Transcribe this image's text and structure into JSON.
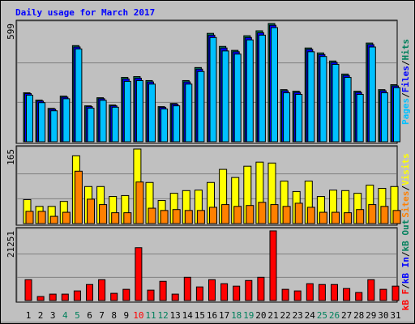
{
  "chart_data": [
    {
      "type": "bar",
      "title": "Daily usage for March 2017",
      "ylim": [
        0,
        599
      ],
      "yticks": [
        599
      ],
      "grid_divisions": 3,
      "legend_separator": "/",
      "series": [
        {
          "name": "Hits",
          "color": "#00805c",
          "values": [
            248,
            211,
            169,
            231,
            487,
            182,
            223,
            186,
            326,
            330,
            310,
            178,
            194,
            310,
            376,
            549,
            483,
            463,
            537,
            562,
            599,
            264,
            256,
            475,
            450,
            409,
            343,
            256,
            500,
            264,
            289
          ]
        },
        {
          "name": "Files",
          "color": "#0000ff",
          "values": [
            244,
            206,
            165,
            226,
            480,
            178,
            218,
            182,
            318,
            322,
            303,
            174,
            190,
            303,
            368,
            540,
            475,
            456,
            528,
            552,
            590,
            258,
            250,
            468,
            442,
            402,
            336,
            250,
            492,
            258,
            283
          ]
        },
        {
          "name": "Pages",
          "color": "#00c0ff",
          "values": [
            236,
            198,
            157,
            218,
            470,
            170,
            210,
            175,
            306,
            310,
            292,
            166,
            182,
            292,
            356,
            528,
            460,
            444,
            516,
            540,
            578,
            248,
            240,
            456,
            432,
            392,
            326,
            240,
            480,
            248,
            274
          ]
        }
      ]
    },
    {
      "type": "bar",
      "ylim": [
        0,
        165
      ],
      "yticks": [
        165
      ],
      "grid_divisions": 3,
      "legend_separator": "/",
      "series": [
        {
          "name": "Visits",
          "color": "#ffff00",
          "values": [
            53,
            38,
            38,
            49,
            150,
            82,
            82,
            60,
            62,
            165,
            91,
            51,
            67,
            73,
            74,
            91,
            120,
            102,
            127,
            136,
            134,
            94,
            71,
            94,
            60,
            74,
            73,
            67,
            85,
            78,
            82
          ]
        },
        {
          "name": "Sites",
          "color": "#ff8000",
          "values": [
            27,
            27,
            16,
            25,
            116,
            54,
            42,
            24,
            24,
            92,
            34,
            29,
            31,
            29,
            29,
            36,
            42,
            38,
            40,
            47,
            42,
            38,
            45,
            36,
            25,
            25,
            24,
            31,
            42,
            38,
            29
          ]
        }
      ]
    },
    {
      "type": "bar",
      "ylim": [
        0,
        21251
      ],
      "yticks": [
        21251
      ],
      "grid_divisions": 3,
      "legend_separator": "/",
      "series": [
        {
          "name": "kB F",
          "color": "#ff0000",
          "values": [
            6351,
            1221,
            1954,
            1954,
            2931,
            4885,
            6351,
            2198,
            3420,
            16122,
            3175,
            5862,
            1954,
            7084,
            4152,
            6351,
            5130,
            4396,
            6107,
            7084,
            21251,
            3420,
            2931,
            5130,
            4885,
            4885,
            3664,
            2443,
            6351,
            3420,
            4396
          ]
        }
      ],
      "legend_extra": [
        {
          "name": "kB In",
          "color": "#0000ff"
        },
        {
          "name": "kB Out",
          "color": "#00805c"
        }
      ],
      "categories": [
        "1",
        "2",
        "3",
        "4",
        "5",
        "6",
        "7",
        "8",
        "9",
        "10",
        "11",
        "12",
        "13",
        "14",
        "15",
        "16",
        "17",
        "18",
        "19",
        "20",
        "21",
        "22",
        "23",
        "24",
        "25",
        "26",
        "27",
        "28",
        "29",
        "30",
        "31"
      ],
      "category_colors": [
        "#000000",
        "#000000",
        "#000000",
        "#00805c",
        "#00805c",
        "#000000",
        "#000000",
        "#000000",
        "#000000",
        "#ff0000",
        "#00805c",
        "#00805c",
        "#000000",
        "#000000",
        "#000000",
        "#000000",
        "#000000",
        "#00805c",
        "#00805c",
        "#000000",
        "#000000",
        "#000000",
        "#000000",
        "#000000",
        "#00805c",
        "#00805c",
        "#000000",
        "#000000",
        "#000000",
        "#000000",
        "#000000"
      ]
    }
  ]
}
